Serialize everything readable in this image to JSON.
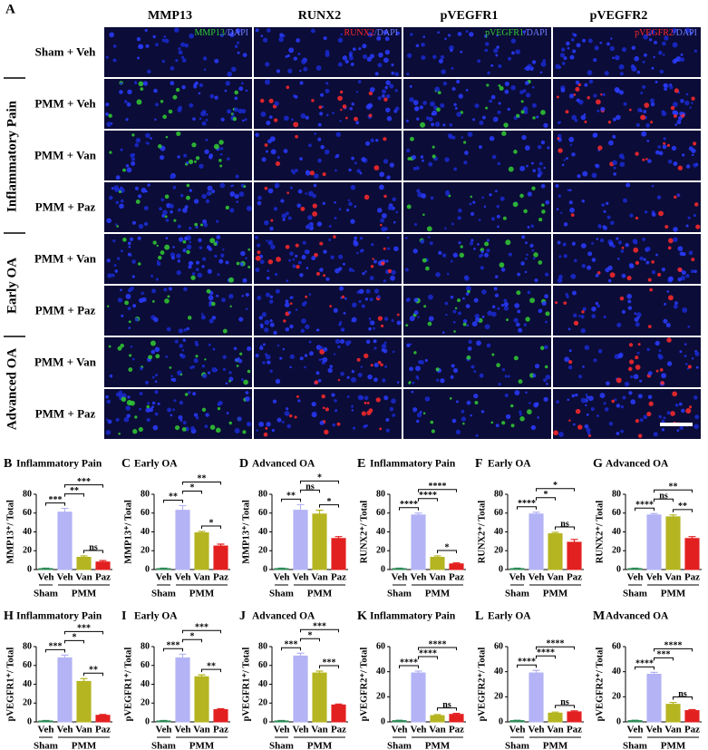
{
  "micrograph_panel": {
    "label": "A",
    "columns": [
      {
        "marker": "MMP13",
        "stain_suffix": "/DAPI",
        "marker_color": "#33cc33"
      },
      {
        "marker": "RUNX2",
        "stain_suffix": "/DAPI",
        "marker_color": "#ff2a2a"
      },
      {
        "marker": "pVEGFR1",
        "stain_suffix": "/DAPI",
        "marker_color": "#33cc33"
      },
      {
        "marker": "pVEGFR2",
        "stain_suffix": "/DAPI",
        "marker_color": "#ff2a2a"
      }
    ],
    "rows": [
      "Sham + Veh",
      "PMM + Veh",
      "PMM + Van",
      "PMM + Paz",
      "PMM + Van",
      "PMM + Paz",
      "PMM + Van",
      "PMM + Paz"
    ],
    "row_groups": [
      {
        "label": "Inflammatory Pain",
        "rows": [
          1,
          3
        ]
      },
      {
        "label": "Early OA",
        "rows": [
          4,
          5
        ]
      },
      {
        "label": "Advanced OA",
        "rows": [
          6,
          7
        ]
      }
    ]
  },
  "chart_data": [
    {
      "type": "bar",
      "panel": "B",
      "title": "Inflammatory  Pain",
      "ylabel": "MMP13⁺/ Total",
      "categories": [
        "Veh",
        "Veh",
        "Van",
        "Paz"
      ],
      "groups": [
        {
          "label": "Sham",
          "span": [
            0,
            0
          ]
        },
        {
          "label": "PMM",
          "span": [
            1,
            3
          ]
        }
      ],
      "values": [
        1,
        61,
        13,
        8
      ],
      "errors": [
        0.5,
        4,
        1.5,
        1.5
      ],
      "colors": [
        "#2e8b57",
        "#b3b3f5",
        "#b5b522",
        "#e32020"
      ],
      "ylim": [
        0,
        80
      ],
      "yticks": [
        0,
        20,
        40,
        60,
        80
      ],
      "significance": [
        {
          "between": [
            0,
            1
          ],
          "label": "***"
        },
        {
          "between": [
            2,
            3
          ],
          "label": "ns"
        },
        {
          "between": [
            1,
            2
          ],
          "label": "**"
        },
        {
          "between": [
            1,
            3
          ],
          "label": "***"
        }
      ]
    },
    {
      "type": "bar",
      "panel": "C",
      "title": "Early  OA",
      "ylabel": "MMP13⁺/ Total",
      "categories": [
        "Veh",
        "Veh",
        "Van",
        "Paz"
      ],
      "groups": [
        {
          "label": "Sham",
          "span": [
            0,
            0
          ]
        },
        {
          "label": "PMM",
          "span": [
            1,
            3
          ]
        }
      ],
      "values": [
        1,
        63,
        39,
        25
      ],
      "errors": [
        0.5,
        5,
        1.5,
        2
      ],
      "colors": [
        "#2e8b57",
        "#b3b3f5",
        "#b5b522",
        "#e32020"
      ],
      "ylim": [
        0,
        80
      ],
      "yticks": [
        0,
        20,
        40,
        60,
        80
      ],
      "significance": [
        {
          "between": [
            0,
            1
          ],
          "label": "**"
        },
        {
          "between": [
            2,
            3
          ],
          "label": "*"
        },
        {
          "between": [
            1,
            2
          ],
          "label": "*"
        },
        {
          "between": [
            1,
            3
          ],
          "label": "**"
        }
      ]
    },
    {
      "type": "bar",
      "panel": "D",
      "title": "Advanced  OA",
      "ylabel": "MMP13⁺/ Total",
      "categories": [
        "Veh",
        "Veh",
        "Van",
        "Paz"
      ],
      "groups": [
        {
          "label": "Sham",
          "span": [
            0,
            0
          ]
        },
        {
          "label": "PMM",
          "span": [
            1,
            3
          ]
        }
      ],
      "values": [
        1,
        63,
        59,
        33
      ],
      "errors": [
        0.5,
        6,
        4,
        2
      ],
      "colors": [
        "#2e8b57",
        "#b3b3f5",
        "#b5b522",
        "#e32020"
      ],
      "ylim": [
        0,
        80
      ],
      "yticks": [
        0,
        20,
        40,
        60,
        80
      ],
      "significance": [
        {
          "between": [
            0,
            1
          ],
          "label": "**"
        },
        {
          "between": [
            2,
            3
          ],
          "label": "*"
        },
        {
          "between": [
            1,
            2
          ],
          "label": "ns"
        },
        {
          "between": [
            1,
            3
          ],
          "label": "*"
        }
      ]
    },
    {
      "type": "bar",
      "panel": "E",
      "title": "Inflammatory  Pain",
      "ylabel": "RUNX2⁺/ Total",
      "categories": [
        "Veh",
        "Veh",
        "Van",
        "Paz"
      ],
      "groups": [
        {
          "label": "Sham",
          "span": [
            0,
            0
          ]
        },
        {
          "label": "PMM",
          "span": [
            1,
            3
          ]
        }
      ],
      "values": [
        1,
        58,
        13,
        6
      ],
      "errors": [
        0.5,
        2,
        1.5,
        1
      ],
      "colors": [
        "#2e8b57",
        "#b3b3f5",
        "#b5b522",
        "#e32020"
      ],
      "ylim": [
        0,
        80
      ],
      "yticks": [
        0,
        20,
        40,
        60,
        80
      ],
      "significance": [
        {
          "between": [
            0,
            1
          ],
          "label": "****"
        },
        {
          "between": [
            2,
            3
          ],
          "label": "*"
        },
        {
          "between": [
            1,
            2
          ],
          "label": "****"
        },
        {
          "between": [
            1,
            3
          ],
          "label": "****"
        }
      ]
    },
    {
      "type": "bar",
      "panel": "F",
      "title": "Early  OA",
      "ylabel": "RUNX2⁺/ Total",
      "categories": [
        "Veh",
        "Veh",
        "Van",
        "Paz"
      ],
      "groups": [
        {
          "label": "Sham",
          "span": [
            0,
            0
          ]
        },
        {
          "label": "PMM",
          "span": [
            1,
            3
          ]
        }
      ],
      "values": [
        1,
        59,
        38,
        29
      ],
      "errors": [
        0.5,
        2,
        1.5,
        3
      ],
      "colors": [
        "#2e8b57",
        "#b3b3f5",
        "#b5b522",
        "#e32020"
      ],
      "ylim": [
        0,
        80
      ],
      "yticks": [
        0,
        20,
        40,
        60,
        80
      ],
      "significance": [
        {
          "between": [
            0,
            1
          ],
          "label": "****"
        },
        {
          "between": [
            2,
            3
          ],
          "label": "ns"
        },
        {
          "between": [
            1,
            2
          ],
          "label": "*"
        },
        {
          "between": [
            1,
            3
          ],
          "label": "*"
        }
      ]
    },
    {
      "type": "bar",
      "panel": "G",
      "title": "Advanced  OA",
      "ylabel": "RUNX2⁺/ Total",
      "categories": [
        "Veh",
        "Veh",
        "Van",
        "Paz"
      ],
      "groups": [
        {
          "label": "Sham",
          "span": [
            0,
            0
          ]
        },
        {
          "label": "PMM",
          "span": [
            1,
            3
          ]
        }
      ],
      "values": [
        1,
        58,
        56,
        33
      ],
      "errors": [
        0.5,
        1.5,
        2,
        2
      ],
      "colors": [
        "#2e8b57",
        "#b3b3f5",
        "#b5b522",
        "#e32020"
      ],
      "ylim": [
        0,
        80
      ],
      "yticks": [
        0,
        20,
        40,
        60,
        80
      ],
      "significance": [
        {
          "between": [
            0,
            1
          ],
          "label": "****"
        },
        {
          "between": [
            2,
            3
          ],
          "label": "**"
        },
        {
          "between": [
            1,
            2
          ],
          "label": "ns"
        },
        {
          "between": [
            1,
            3
          ],
          "label": "**"
        }
      ]
    },
    {
      "type": "bar",
      "panel": "H",
      "title": "Inflammatory  Pain",
      "ylabel": "pVEGFR1⁺/ Total",
      "categories": [
        "Veh",
        "Veh",
        "Van",
        "Paz"
      ],
      "groups": [
        {
          "label": "Sham",
          "span": [
            0,
            0
          ]
        },
        {
          "label": "PMM",
          "span": [
            1,
            3
          ]
        }
      ],
      "values": [
        1,
        68,
        43,
        7
      ],
      "errors": [
        0.5,
        3,
        3,
        0.8
      ],
      "colors": [
        "#2e8b57",
        "#b3b3f5",
        "#b5b522",
        "#e32020"
      ],
      "ylim": [
        0,
        80
      ],
      "yticks": [
        0,
        20,
        40,
        60,
        80
      ],
      "significance": [
        {
          "between": [
            0,
            1
          ],
          "label": "***"
        },
        {
          "between": [
            2,
            3
          ],
          "label": "**"
        },
        {
          "between": [
            1,
            2
          ],
          "label": "*"
        },
        {
          "between": [
            1,
            3
          ],
          "label": "***"
        }
      ]
    },
    {
      "type": "bar",
      "panel": "I",
      "title": "Early  OA",
      "ylabel": "pVEGFR1⁺/ Total",
      "categories": [
        "Veh",
        "Veh",
        "Van",
        "Paz"
      ],
      "groups": [
        {
          "label": "Sham",
          "span": [
            0,
            0
          ]
        },
        {
          "label": "PMM",
          "span": [
            1,
            3
          ]
        }
      ],
      "values": [
        1,
        68,
        48,
        13
      ],
      "errors": [
        0.5,
        4,
        2,
        1
      ],
      "colors": [
        "#2e8b57",
        "#b3b3f5",
        "#b5b522",
        "#e32020"
      ],
      "ylim": [
        0,
        80
      ],
      "yticks": [
        0,
        20,
        40,
        60,
        80
      ],
      "significance": [
        {
          "between": [
            0,
            1
          ],
          "label": "***"
        },
        {
          "between": [
            2,
            3
          ],
          "label": "**"
        },
        {
          "between": [
            1,
            2
          ],
          "label": "*"
        },
        {
          "between": [
            1,
            3
          ],
          "label": "***"
        }
      ]
    },
    {
      "type": "bar",
      "panel": "J",
      "title": "Advanced  OA",
      "ylabel": "pVEGFR1⁺/ Total",
      "categories": [
        "Veh",
        "Veh",
        "Van",
        "Paz"
      ],
      "groups": [
        {
          "label": "Sham",
          "span": [
            0,
            0
          ]
        },
        {
          "label": "PMM",
          "span": [
            1,
            3
          ]
        }
      ],
      "values": [
        1,
        70,
        52,
        18
      ],
      "errors": [
        0.5,
        3,
        2,
        1
      ],
      "colors": [
        "#2e8b57",
        "#b3b3f5",
        "#b5b522",
        "#e32020"
      ],
      "ylim": [
        0,
        80
      ],
      "yticks": [
        0,
        20,
        40,
        60,
        80
      ],
      "significance": [
        {
          "between": [
            0,
            1
          ],
          "label": "***"
        },
        {
          "between": [
            2,
            3
          ],
          "label": "***"
        },
        {
          "between": [
            1,
            2
          ],
          "label": "*"
        },
        {
          "between": [
            1,
            3
          ],
          "label": "***"
        }
      ]
    },
    {
      "type": "bar",
      "panel": "K",
      "title": "Inflammatory  Pain",
      "ylabel": "pVEGFR2⁺/ Total",
      "categories": [
        "Veh",
        "Veh",
        "Van",
        "Paz"
      ],
      "groups": [
        {
          "label": "Sham",
          "span": [
            0,
            0
          ]
        },
        {
          "label": "PMM",
          "span": [
            1,
            3
          ]
        }
      ],
      "values": [
        1,
        39,
        5,
        6
      ],
      "errors": [
        0.3,
        1.5,
        0.8,
        0.8
      ],
      "colors": [
        "#2e8b57",
        "#b3b3f5",
        "#b5b522",
        "#e32020"
      ],
      "ylim": [
        0,
        60
      ],
      "yticks": [
        0,
        20,
        40,
        60
      ],
      "significance": [
        {
          "between": [
            0,
            1
          ],
          "label": "****"
        },
        {
          "between": [
            2,
            3
          ],
          "label": "ns"
        },
        {
          "between": [
            1,
            2
          ],
          "label": "****"
        },
        {
          "between": [
            1,
            3
          ],
          "label": "****"
        }
      ]
    },
    {
      "type": "bar",
      "panel": "L",
      "title": "Early  OA",
      "ylabel": "pVEGFR2⁺/ Total",
      "categories": [
        "Veh",
        "Veh",
        "Van",
        "Paz"
      ],
      "groups": [
        {
          "label": "Sham",
          "span": [
            0,
            0
          ]
        },
        {
          "label": "PMM",
          "span": [
            1,
            3
          ]
        }
      ],
      "values": [
        1,
        39,
        7,
        8
      ],
      "errors": [
        0.3,
        2,
        0.8,
        0.8
      ],
      "colors": [
        "#2e8b57",
        "#b3b3f5",
        "#b5b522",
        "#e32020"
      ],
      "ylim": [
        0,
        60
      ],
      "yticks": [
        0,
        20,
        40,
        60
      ],
      "significance": [
        {
          "between": [
            0,
            1
          ],
          "label": "****"
        },
        {
          "between": [
            2,
            3
          ],
          "label": "ns"
        },
        {
          "between": [
            1,
            2
          ],
          "label": "****"
        },
        {
          "between": [
            1,
            3
          ],
          "label": "****"
        }
      ]
    },
    {
      "type": "bar",
      "panel": "M",
      "title": "Advanced  OA",
      "ylabel": "pVEGFR2⁺/ Total",
      "categories": [
        "Veh",
        "Veh",
        "Van",
        "Paz"
      ],
      "groups": [
        {
          "label": "Sham",
          "span": [
            0,
            0
          ]
        },
        {
          "label": "PMM",
          "span": [
            1,
            3
          ]
        }
      ],
      "values": [
        1,
        38,
        14,
        9
      ],
      "errors": [
        0.3,
        1.5,
        1.5,
        0.8
      ],
      "colors": [
        "#2e8b57",
        "#b3b3f5",
        "#b5b522",
        "#e32020"
      ],
      "ylim": [
        0,
        60
      ],
      "yticks": [
        0,
        20,
        40,
        60
      ],
      "significance": [
        {
          "between": [
            0,
            1
          ],
          "label": "****"
        },
        {
          "between": [
            2,
            3
          ],
          "label": "ns"
        },
        {
          "between": [
            1,
            2
          ],
          "label": "***"
        },
        {
          "between": [
            1,
            3
          ],
          "label": "****"
        }
      ]
    }
  ]
}
